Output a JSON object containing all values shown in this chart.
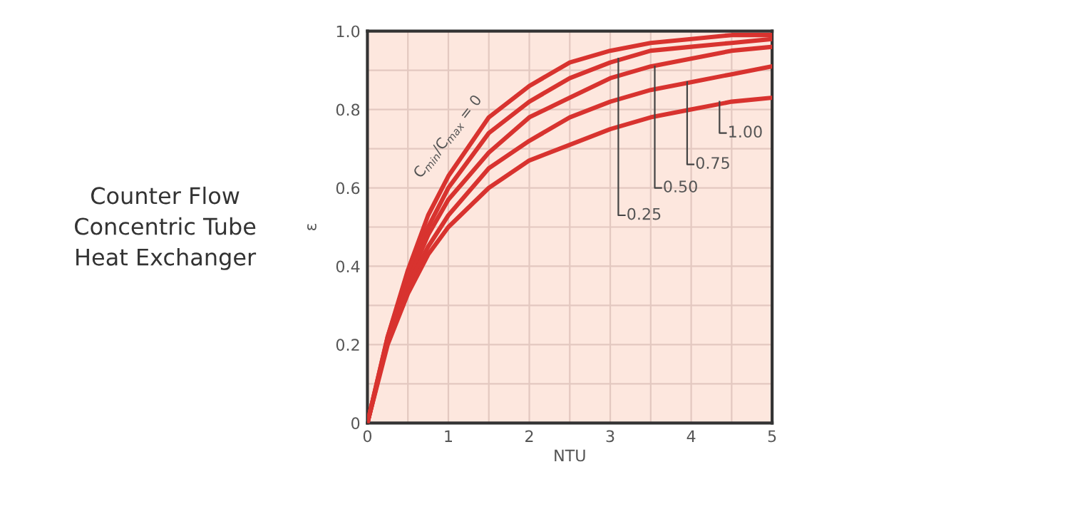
{
  "chart_data": {
    "type": "line",
    "title": "Counter Flow\nConcentric Tube\nHeat Exchanger",
    "xlabel": "NTU",
    "ylabel": "ε",
    "x": [
      0,
      0.25,
      0.5,
      0.75,
      1,
      1.5,
      2,
      2.5,
      3,
      3.5,
      4,
      4.5,
      5
    ],
    "series": [
      {
        "color": "#d8332f",
        "values": [
          0,
          0.22,
          0.39,
          0.53,
          0.63,
          0.78,
          0.86,
          0.92,
          0.95,
          0.97,
          0.98,
          0.99,
          0.99
        ]
      },
      {
        "color": "#d8332f",
        "values": [
          0,
          0.22,
          0.38,
          0.5,
          0.6,
          0.74,
          0.82,
          0.88,
          0.92,
          0.95,
          0.96,
          0.97,
          0.98
        ]
      },
      {
        "color": "#d8332f",
        "values": [
          0,
          0.21,
          0.36,
          0.48,
          0.57,
          0.69,
          0.78,
          0.83,
          0.88,
          0.91,
          0.93,
          0.95,
          0.96
        ]
      },
      {
        "color": "#d8332f",
        "values": [
          0,
          0.21,
          0.35,
          0.45,
          0.53,
          0.65,
          0.72,
          0.78,
          0.82,
          0.85,
          0.87,
          0.89,
          0.91
        ]
      },
      {
        "color": "#d8332f",
        "values": [
          0,
          0.2,
          0.33,
          0.43,
          0.5,
          0.6,
          0.67,
          0.71,
          0.75,
          0.78,
          0.8,
          0.82,
          0.83
        ]
      }
    ],
    "annotations": [
      {
        "text": "C$_{min}$/C$_{max}$ = 0",
        "x": 1,
        "y": 0.63
      },
      {
        "text": "0.25",
        "x": 3.1,
        "y": 0.93
      },
      {
        "text": "0.50",
        "x": 3.55,
        "y": 0.91
      },
      {
        "text": "0.75",
        "x": 3.95,
        "y": 0.87
      },
      {
        "text": "1.00",
        "x": 4.35,
        "y": 0.82
      }
    ],
    "xlim": [
      0,
      5
    ],
    "ylim": [
      0,
      1
    ],
    "xticks": [
      0,
      {
        "value": 0.5,
        "label": null
      },
      1,
      {
        "value": 1.5,
        "label": null
      },
      2,
      {
        "value": 2.5,
        "label": null
      },
      3,
      {
        "value": 3.5,
        "label": null
      },
      4,
      {
        "value": 4.5,
        "label": null
      },
      5
    ],
    "yticks": [
      0,
      {
        "value": 0.1,
        "label": null
      },
      0.2,
      {
        "value": 0.3,
        "label": null
      },
      0.4,
      {
        "value": 0.5,
        "label": null
      },
      0.6,
      {
        "value": 0.7,
        "label": null
      },
      0.8,
      {
        "value": 0.9,
        "label": null
      },
      {
        "value": 1,
        "label": "1.0"
      }
    ],
    "grid": true,
    "marker": "none",
    "line_style": "solid"
  }
}
